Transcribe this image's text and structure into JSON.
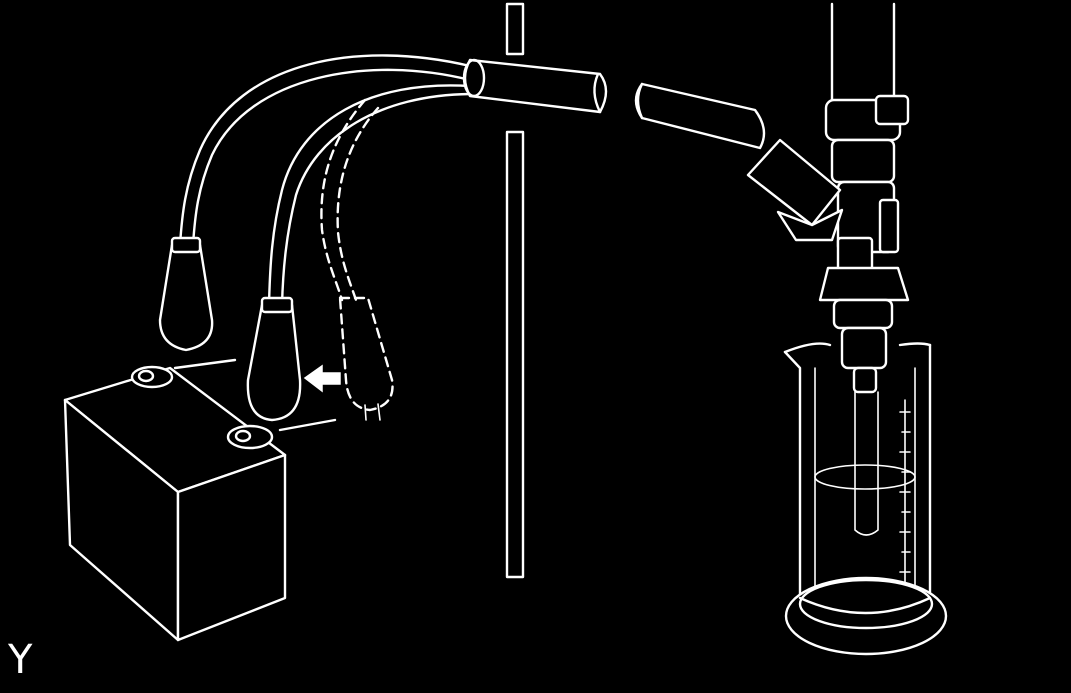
{
  "figure": {
    "corner_label": "Y"
  },
  "colors": {
    "background": "#000000",
    "line": "#ffffff"
  },
  "icons": {
    "battery": "battery-icon",
    "arrow": "arrow-left-icon",
    "injector": "fuel-injector-icon",
    "cylinder": "measuring-cylinder-icon"
  }
}
